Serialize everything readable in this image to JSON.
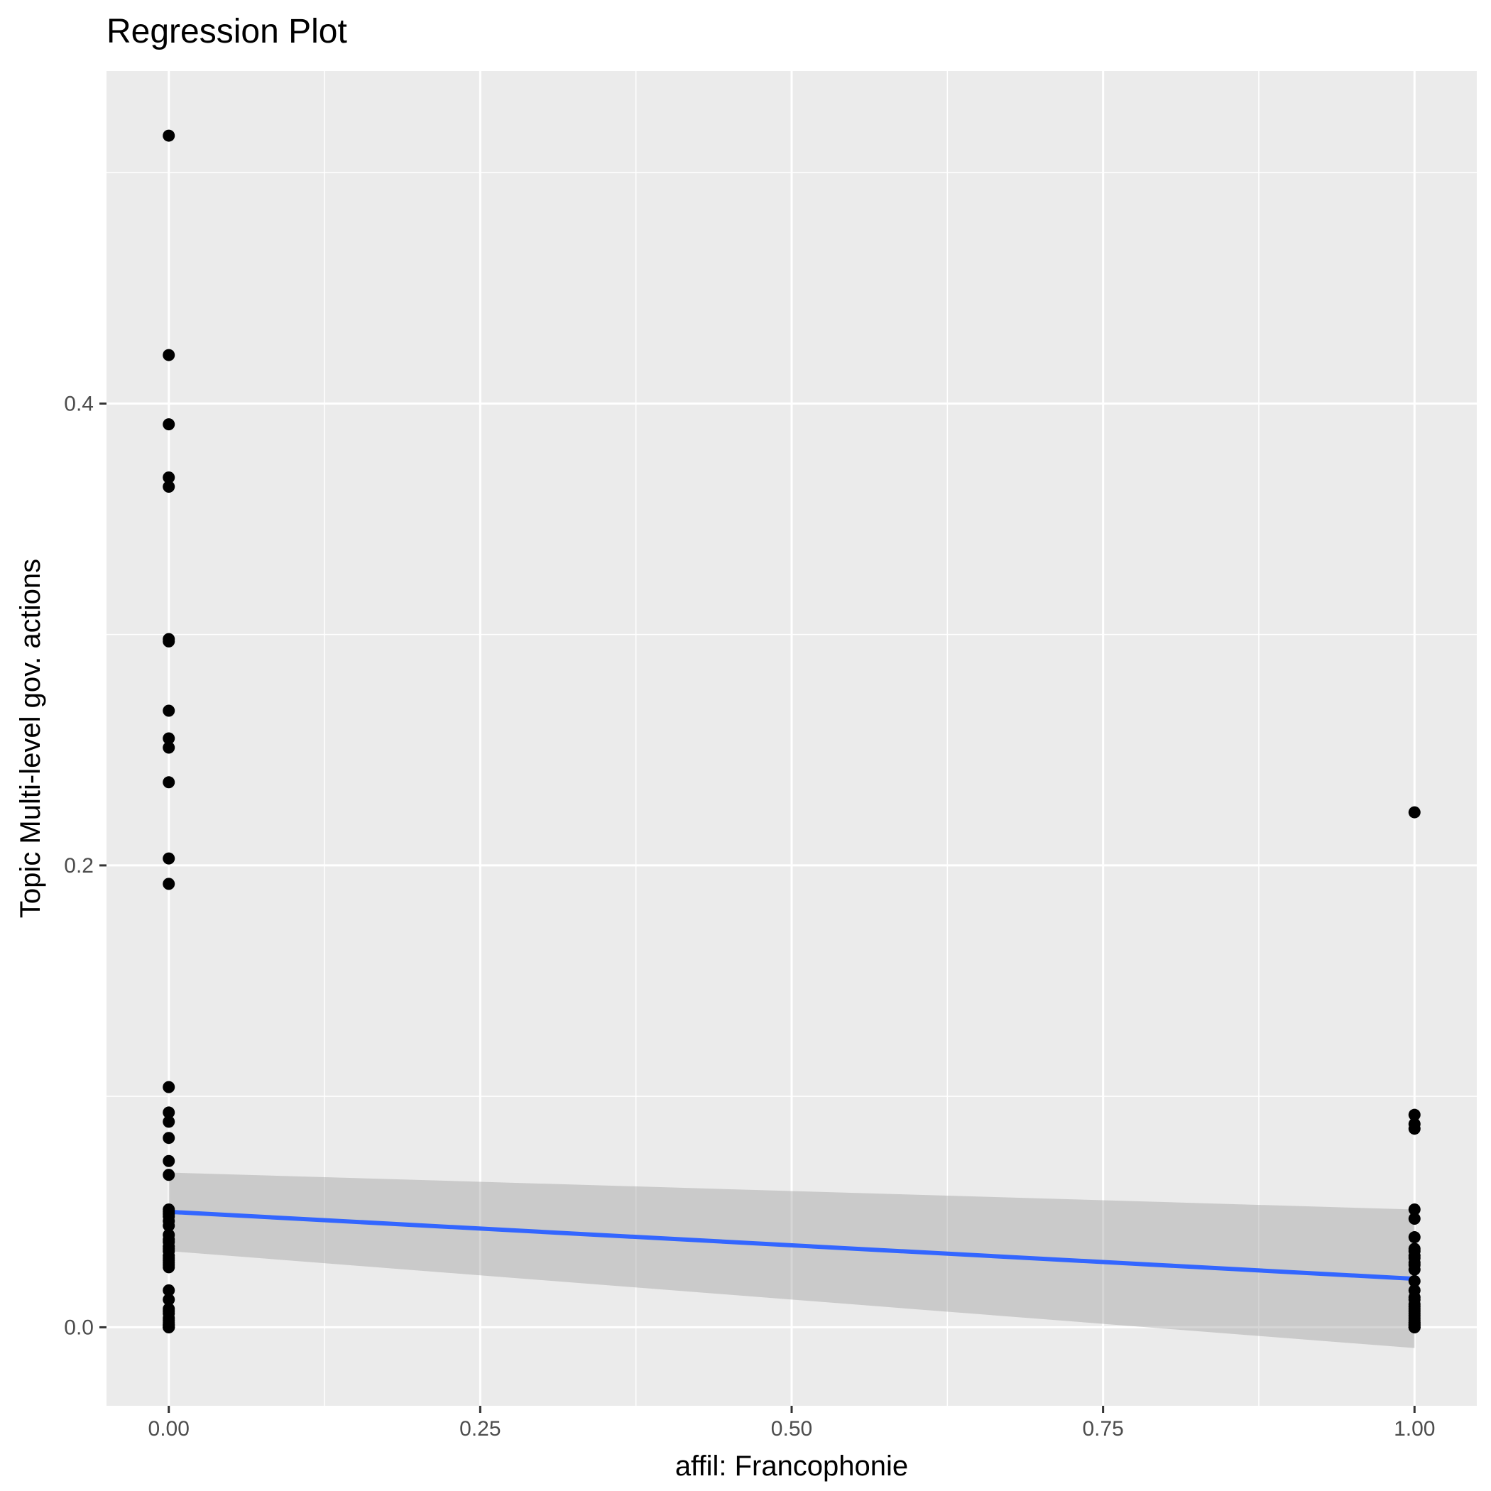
{
  "chart_data": {
    "type": "scatter",
    "title": "Regression Plot",
    "xlabel": "affil: Francophonie",
    "ylabel": "Topic Multi-level gov. actions",
    "xlim": [
      -0.05,
      1.05
    ],
    "ylim": [
      -0.034,
      0.544
    ],
    "x_ticks": [
      0.0,
      0.25,
      0.5,
      0.75,
      1.0
    ],
    "x_tick_labels": [
      "0.00",
      "0.25",
      "0.50",
      "0.75",
      "1.00"
    ],
    "y_ticks": [
      0.0,
      0.2,
      0.4
    ],
    "y_tick_labels": [
      "0.0",
      "0.2",
      "0.4"
    ],
    "grid": true,
    "legend": "none",
    "colors": {
      "panel_background": "#ebebeb",
      "grid": "#ffffff",
      "points": "#000000",
      "regression_line": "#3366ff",
      "confidence_band": "#999999"
    },
    "series": [
      {
        "type": "scatter",
        "x": [
          0,
          0,
          0,
          0,
          0,
          0,
          0,
          0,
          0,
          0,
          0,
          0,
          0,
          0,
          0,
          0,
          0,
          0,
          0,
          0,
          0,
          0,
          0,
          0,
          0,
          0,
          0,
          0,
          0,
          0,
          0,
          0,
          0,
          0,
          0,
          0,
          0,
          0,
          0,
          0,
          0,
          0,
          0,
          0,
          0,
          0,
          0,
          0,
          0,
          0,
          1,
          1,
          1,
          1,
          1,
          1,
          1,
          1,
          1,
          1,
          1,
          1,
          1,
          1,
          1,
          1,
          1,
          1,
          1,
          1,
          1,
          1,
          1,
          1,
          1,
          1,
          1,
          1,
          1,
          1,
          1,
          1,
          1
        ],
        "y": [
          0.516,
          0.421,
          0.391,
          0.368,
          0.364,
          0.298,
          0.297,
          0.267,
          0.255,
          0.251,
          0.236,
          0.203,
          0.192,
          0.104,
          0.093,
          0.089,
          0.082,
          0.072,
          0.066,
          0.051,
          0.05,
          0.048,
          0.046,
          0.04,
          0.038,
          0.035,
          0.033,
          0.031,
          0.03,
          0.028,
          0.026,
          0.016,
          0.008,
          0.007,
          0.004,
          0.002,
          0.001,
          0.0,
          0.0,
          0.0,
          0.049,
          0.044,
          0.037,
          0.034,
          0.029,
          0.027,
          0.012,
          0.006,
          0.003,
          0.001,
          0.223,
          0.092,
          0.088,
          0.086,
          0.051,
          0.047,
          0.039,
          0.034,
          0.033,
          0.031,
          0.028,
          0.027,
          0.025,
          0.016,
          0.013,
          0.01,
          0.008,
          0.006,
          0.005,
          0.004,
          0.003,
          0.002,
          0.001,
          0.0,
          0.0,
          0.012,
          0.009,
          0.007,
          0.002,
          0.001,
          0.0,
          0.03,
          0.02
        ]
      },
      {
        "type": "line",
        "x": [
          0,
          1
        ],
        "y": [
          0.05,
          0.021
        ]
      },
      {
        "type": "band",
        "x": [
          0,
          1
        ],
        "y_low": [
          0.033,
          -0.009
        ],
        "y_high": [
          0.067,
          0.051
        ]
      }
    ]
  }
}
